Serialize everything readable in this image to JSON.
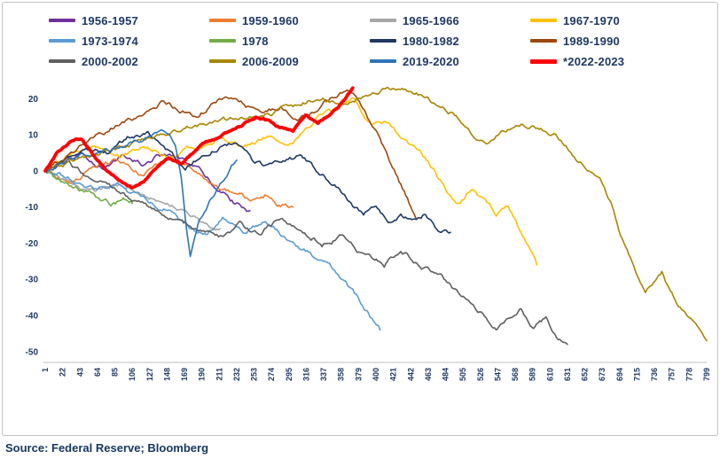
{
  "source": "Source: Federal Reserve; Bloomberg",
  "chart_data": {
    "type": "line",
    "title": "",
    "xlabel": "",
    "ylabel": "",
    "legend_position": "top",
    "grid": false,
    "x_axis": {
      "min": 1,
      "max": 799,
      "tick_step": 21,
      "ticks": [
        1,
        22,
        43,
        64,
        85,
        106,
        127,
        148,
        169,
        190,
        211,
        232,
        253,
        274,
        295,
        316,
        337,
        358,
        379,
        400,
        421,
        442,
        463,
        484,
        505,
        526,
        547,
        568,
        589,
        610,
        631,
        652,
        673,
        694,
        715,
        736,
        757,
        778,
        799
      ]
    },
    "y_axis": {
      "min": -50,
      "max": 20,
      "tick_step": 10,
      "ticks": [
        20,
        10,
        0,
        -10,
        -20,
        -30,
        -40,
        -50
      ]
    },
    "series": [
      {
        "name": "1956-1957",
        "color": "#7030A0",
        "emphasis": false,
        "points": [
          [
            1,
            0
          ],
          [
            25,
            2
          ],
          [
            45,
            4
          ],
          [
            70,
            1
          ],
          [
            95,
            4
          ],
          [
            120,
            2
          ],
          [
            145,
            5
          ],
          [
            165,
            3
          ],
          [
            185,
            0
          ],
          [
            200,
            -3
          ],
          [
            215,
            -6
          ],
          [
            230,
            -9
          ],
          [
            248,
            -11
          ]
        ]
      },
      {
        "name": "1959-1960",
        "color": "#ED7D31",
        "emphasis": false,
        "points": [
          [
            1,
            0
          ],
          [
            30,
            -3
          ],
          [
            60,
            1
          ],
          [
            90,
            3
          ],
          [
            120,
            -1
          ],
          [
            150,
            3
          ],
          [
            175,
            1
          ],
          [
            200,
            -3
          ],
          [
            225,
            -6
          ],
          [
            250,
            -8
          ],
          [
            270,
            -6
          ],
          [
            285,
            -9
          ],
          [
            300,
            -10
          ]
        ]
      },
      {
        "name": "1965-1966",
        "color": "#A6A6A6",
        "emphasis": false,
        "points": [
          [
            1,
            0
          ],
          [
            30,
            -3
          ],
          [
            60,
            -6
          ],
          [
            90,
            -4
          ],
          [
            120,
            -7
          ],
          [
            150,
            -9
          ],
          [
            175,
            -12
          ],
          [
            195,
            -15
          ],
          [
            212,
            -16
          ]
        ]
      },
      {
        "name": "1967-1970",
        "color": "#FFC000",
        "emphasis": false,
        "points": [
          [
            1,
            0
          ],
          [
            30,
            4
          ],
          [
            60,
            7
          ],
          [
            90,
            4
          ],
          [
            120,
            7
          ],
          [
            150,
            4
          ],
          [
            180,
            7
          ],
          [
            210,
            9
          ],
          [
            240,
            6
          ],
          [
            270,
            10
          ],
          [
            300,
            8
          ],
          [
            330,
            14
          ],
          [
            355,
            17
          ],
          [
            375,
            20
          ],
          [
            395,
            13
          ],
          [
            415,
            14
          ],
          [
            435,
            8
          ],
          [
            455,
            4
          ],
          [
            470,
            0
          ],
          [
            485,
            -5
          ],
          [
            500,
            -9
          ],
          [
            515,
            -5
          ],
          [
            530,
            -8
          ],
          [
            545,
            -12
          ],
          [
            560,
            -10
          ],
          [
            575,
            -17
          ],
          [
            588,
            -22
          ],
          [
            594,
            -26
          ]
        ]
      },
      {
        "name": "1973-1974",
        "color": "#5B9BD5",
        "emphasis": false,
        "points": [
          [
            1,
            0
          ],
          [
            30,
            -2
          ],
          [
            60,
            -5
          ],
          [
            90,
            -4
          ],
          [
            120,
            -8
          ],
          [
            150,
            -11
          ],
          [
            175,
            -16
          ],
          [
            195,
            -17
          ],
          [
            215,
            -13
          ],
          [
            240,
            -17
          ],
          [
            265,
            -14
          ],
          [
            290,
            -19
          ],
          [
            315,
            -22
          ],
          [
            340,
            -26
          ],
          [
            360,
            -30
          ],
          [
            380,
            -36
          ],
          [
            395,
            -41
          ],
          [
            405,
            -44
          ]
        ]
      },
      {
        "name": "1978",
        "color": "#70AD47",
        "emphasis": false,
        "points": [
          [
            1,
            0
          ],
          [
            20,
            -3
          ],
          [
            40,
            -5
          ],
          [
            60,
            -7
          ],
          [
            80,
            -9
          ],
          [
            95,
            -8
          ],
          [
            106,
            -9
          ]
        ]
      },
      {
        "name": "1980-1982",
        "color": "#1F3864",
        "emphasis": false,
        "points": [
          [
            1,
            0
          ],
          [
            25,
            4
          ],
          [
            50,
            7
          ],
          [
            75,
            5
          ],
          [
            100,
            9
          ],
          [
            125,
            11
          ],
          [
            150,
            6
          ],
          [
            170,
            1
          ],
          [
            190,
            4
          ],
          [
            210,
            7
          ],
          [
            230,
            8
          ],
          [
            250,
            3
          ],
          [
            270,
            1
          ],
          [
            290,
            2
          ],
          [
            310,
            4
          ],
          [
            330,
            0
          ],
          [
            350,
            -4
          ],
          [
            370,
            -9
          ],
          [
            385,
            -12
          ],
          [
            400,
            -10
          ],
          [
            415,
            -14
          ],
          [
            430,
            -12
          ],
          [
            445,
            -14
          ],
          [
            460,
            -12
          ],
          [
            475,
            -16
          ],
          [
            490,
            -17
          ]
        ]
      },
      {
        "name": "1989-1990",
        "color": "#9E480E",
        "emphasis": false,
        "points": [
          [
            1,
            0
          ],
          [
            30,
            5
          ],
          [
            60,
            9
          ],
          [
            90,
            13
          ],
          [
            120,
            16
          ],
          [
            145,
            19
          ],
          [
            165,
            17
          ],
          [
            185,
            15
          ],
          [
            205,
            19
          ],
          [
            225,
            21
          ],
          [
            245,
            18
          ],
          [
            265,
            16
          ],
          [
            285,
            18
          ],
          [
            305,
            15
          ],
          [
            325,
            17
          ],
          [
            345,
            20
          ],
          [
            365,
            22
          ],
          [
            380,
            19
          ],
          [
            392,
            14
          ],
          [
            405,
            8
          ],
          [
            418,
            2
          ],
          [
            430,
            -4
          ],
          [
            440,
            -9
          ],
          [
            448,
            -13
          ]
        ]
      },
      {
        "name": "2000-2002",
        "color": "#5F5F5F",
        "emphasis": false,
        "points": [
          [
            1,
            0
          ],
          [
            30,
            2
          ],
          [
            60,
            -3
          ],
          [
            90,
            -6
          ],
          [
            120,
            -9
          ],
          [
            150,
            -13
          ],
          [
            180,
            -16
          ],
          [
            210,
            -18
          ],
          [
            235,
            -15
          ],
          [
            260,
            -18
          ],
          [
            285,
            -13
          ],
          [
            310,
            -16
          ],
          [
            335,
            -20
          ],
          [
            360,
            -18
          ],
          [
            385,
            -23
          ],
          [
            410,
            -26
          ],
          [
            430,
            -22
          ],
          [
            455,
            -26
          ],
          [
            480,
            -30
          ],
          [
            505,
            -35
          ],
          [
            525,
            -39
          ],
          [
            545,
            -44
          ],
          [
            560,
            -41
          ],
          [
            575,
            -38
          ],
          [
            590,
            -43
          ],
          [
            605,
            -41
          ],
          [
            620,
            -46
          ],
          [
            631,
            -48
          ]
        ]
      },
      {
        "name": "2006-2009",
        "color": "#A98600",
        "emphasis": false,
        "points": [
          [
            1,
            0
          ],
          [
            30,
            2
          ],
          [
            60,
            5
          ],
          [
            90,
            7
          ],
          [
            120,
            9
          ],
          [
            150,
            10
          ],
          [
            180,
            12
          ],
          [
            210,
            13
          ],
          [
            240,
            15
          ],
          [
            270,
            16
          ],
          [
            300,
            18
          ],
          [
            330,
            20
          ],
          [
            360,
            19
          ],
          [
            390,
            21
          ],
          [
            420,
            23
          ],
          [
            445,
            22
          ],
          [
            470,
            19
          ],
          [
            495,
            16
          ],
          [
            515,
            11
          ],
          [
            535,
            8
          ],
          [
            555,
            11
          ],
          [
            575,
            13
          ],
          [
            595,
            12
          ],
          [
            615,
            10
          ],
          [
            635,
            5
          ],
          [
            655,
            1
          ],
          [
            670,
            -3
          ],
          [
            685,
            -10
          ],
          [
            695,
            -18
          ],
          [
            705,
            -24
          ],
          [
            715,
            -29
          ],
          [
            725,
            -33
          ],
          [
            735,
            -30
          ],
          [
            745,
            -28
          ],
          [
            755,
            -34
          ],
          [
            765,
            -38
          ],
          [
            780,
            -42
          ],
          [
            790,
            -44
          ],
          [
            799,
            -47
          ]
        ]
      },
      {
        "name": "2019-2020",
        "color": "#2E75B6",
        "emphasis": false,
        "points": [
          [
            1,
            0
          ],
          [
            30,
            3
          ],
          [
            60,
            5
          ],
          [
            90,
            7
          ],
          [
            120,
            9
          ],
          [
            145,
            11
          ],
          [
            158,
            8
          ],
          [
            165,
            -2
          ],
          [
            170,
            -14
          ],
          [
            176,
            -24
          ],
          [
            185,
            -15
          ],
          [
            195,
            -10
          ],
          [
            208,
            -5
          ],
          [
            220,
            -1
          ],
          [
            232,
            3
          ]
        ]
      },
      {
        "name": "*2022-2023",
        "color": "#FF0000",
        "emphasis": true,
        "points": [
          [
            1,
            0
          ],
          [
            15,
            5
          ],
          [
            30,
            8
          ],
          [
            45,
            9
          ],
          [
            60,
            4
          ],
          [
            75,
            0
          ],
          [
            90,
            -3
          ],
          [
            105,
            -5
          ],
          [
            120,
            -3
          ],
          [
            135,
            1
          ],
          [
            150,
            4
          ],
          [
            165,
            2
          ],
          [
            180,
            5
          ],
          [
            195,
            8
          ],
          [
            210,
            9
          ],
          [
            225,
            11
          ],
          [
            240,
            13
          ],
          [
            255,
            15
          ],
          [
            270,
            14
          ],
          [
            285,
            12
          ],
          [
            300,
            11
          ],
          [
            315,
            15
          ],
          [
            330,
            13
          ],
          [
            345,
            16
          ],
          [
            355,
            18
          ],
          [
            365,
            21
          ],
          [
            372,
            23
          ]
        ]
      }
    ]
  }
}
